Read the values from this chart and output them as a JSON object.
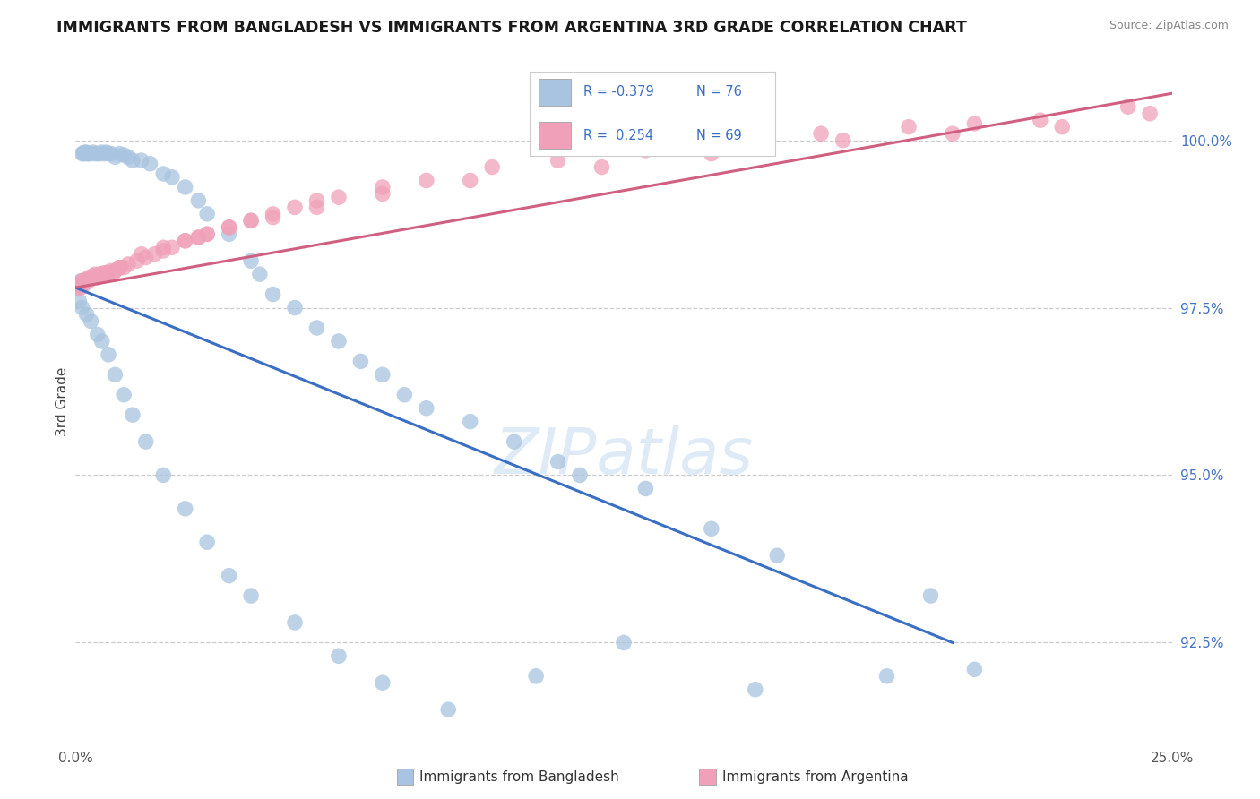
{
  "title": "IMMIGRANTS FROM BANGLADESH VS IMMIGRANTS FROM ARGENTINA 3RD GRADE CORRELATION CHART",
  "source": "Source: ZipAtlas.com",
  "ylabel": "3rd Grade",
  "color_bangladesh": "#a8c4e0",
  "color_argentina": "#f0a0b8",
  "line_color_bangladesh": "#3a6fc4",
  "line_color_argentina": "#d06080",
  "legend_r_bangladesh": "-0.379",
  "legend_n_bangladesh": "76",
  "legend_r_argentina": "0.254",
  "legend_n_argentina": "69",
  "watermark_text": "ZIPatlas",
  "watermark_color": "#c8ddf0",
  "xlim": [
    0,
    25
  ],
  "ylim": [
    91.0,
    101.2
  ],
  "y_ticks": [
    92.5,
    95.0,
    97.5,
    100.0
  ],
  "blue_line_x": [
    0,
    20
  ],
  "blue_line_y": [
    97.8,
    92.5
  ],
  "pink_line_x": [
    0,
    25
  ],
  "pink_line_y": [
    97.8,
    100.7
  ],
  "bd_x": [
    0.05,
    0.1,
    0.12,
    0.15,
    0.18,
    0.2,
    0.22,
    0.25,
    0.28,
    0.3,
    0.35,
    0.4,
    0.45,
    0.5,
    0.55,
    0.6,
    0.65,
    0.7,
    0.75,
    0.8,
    0.9,
    1.0,
    1.1,
    1.2,
    1.3,
    1.5,
    1.7,
    2.0,
    2.2,
    2.5,
    2.8,
    3.0,
    3.5,
    4.0,
    4.2,
    4.5,
    5.0,
    5.5,
    6.0,
    6.5,
    7.0,
    7.5,
    8.0,
    9.0,
    10.0,
    11.0,
    11.5,
    13.0,
    14.5,
    16.0,
    19.5,
    0.08,
    0.15,
    0.25,
    0.35,
    0.5,
    0.6,
    0.75,
    0.9,
    1.1,
    1.3,
    1.6,
    2.0,
    2.5,
    3.0,
    3.5,
    4.0,
    5.0,
    6.0,
    7.0,
    8.5,
    10.5,
    12.5,
    15.5,
    18.5,
    20.5
  ],
  "bd_y": [
    97.8,
    97.85,
    97.9,
    99.8,
    99.8,
    99.82,
    99.8,
    99.82,
    99.8,
    99.8,
    99.8,
    99.82,
    99.8,
    99.8,
    99.8,
    99.82,
    99.8,
    99.82,
    99.8,
    99.8,
    99.75,
    99.8,
    99.78,
    99.75,
    99.7,
    99.7,
    99.65,
    99.5,
    99.45,
    99.3,
    99.1,
    98.9,
    98.6,
    98.2,
    98.0,
    97.7,
    97.5,
    97.2,
    97.0,
    96.7,
    96.5,
    96.2,
    96.0,
    95.8,
    95.5,
    95.2,
    95.0,
    94.8,
    94.2,
    93.8,
    93.2,
    97.6,
    97.5,
    97.4,
    97.3,
    97.1,
    97.0,
    96.8,
    96.5,
    96.2,
    95.9,
    95.5,
    95.0,
    94.5,
    94.0,
    93.5,
    93.2,
    92.8,
    92.3,
    91.9,
    91.5,
    92.0,
    92.5,
    91.8,
    92.0,
    92.1
  ],
  "ar_x": [
    0.05,
    0.1,
    0.15,
    0.2,
    0.25,
    0.3,
    0.35,
    0.4,
    0.45,
    0.5,
    0.55,
    0.6,
    0.65,
    0.7,
    0.75,
    0.8,
    0.85,
    0.9,
    1.0,
    1.1,
    1.2,
    1.4,
    1.6,
    1.8,
    2.0,
    2.2,
    2.5,
    2.8,
    3.0,
    3.5,
    4.0,
    4.5,
    5.0,
    5.5,
    6.0,
    7.0,
    8.0,
    9.5,
    11.0,
    13.0,
    15.0,
    17.0,
    19.0,
    20.5,
    22.0,
    24.0,
    0.12,
    0.2,
    0.3,
    0.5,
    0.7,
    1.0,
    1.5,
    2.0,
    2.5,
    3.0,
    4.0,
    5.5,
    7.0,
    9.0,
    12.0,
    14.5,
    17.5,
    20.0,
    22.5,
    24.5,
    2.8,
    3.5,
    4.5
  ],
  "ar_y": [
    97.8,
    97.85,
    97.9,
    97.9,
    97.92,
    97.95,
    97.95,
    97.98,
    98.0,
    97.98,
    98.0,
    98.0,
    98.02,
    98.0,
    98.02,
    98.05,
    98.0,
    98.05,
    98.1,
    98.1,
    98.15,
    98.2,
    98.25,
    98.3,
    98.35,
    98.4,
    98.5,
    98.55,
    98.6,
    98.7,
    98.8,
    98.9,
    99.0,
    99.1,
    99.15,
    99.3,
    99.4,
    99.6,
    99.7,
    99.85,
    100.0,
    100.1,
    100.2,
    100.25,
    100.3,
    100.5,
    97.8,
    97.85,
    97.9,
    97.95,
    98.0,
    98.1,
    98.3,
    98.4,
    98.5,
    98.6,
    98.8,
    99.0,
    99.2,
    99.4,
    99.6,
    99.8,
    100.0,
    100.1,
    100.2,
    100.4,
    98.55,
    98.7,
    98.85
  ]
}
